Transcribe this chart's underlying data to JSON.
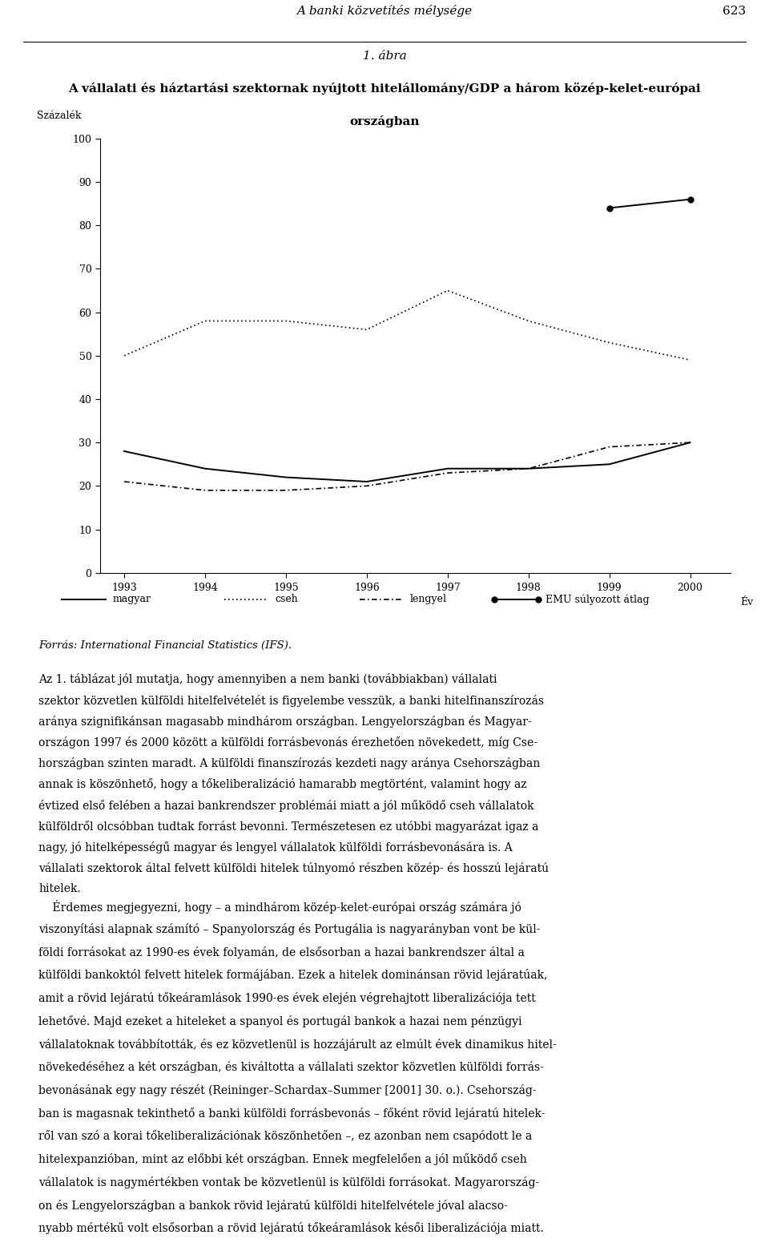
{
  "title_line1": "1. ábra",
  "title_line2": "A vállalati és háztartási szektornak nyújtott hitelállomány/GDP a három közép-kelet-európai",
  "title_line3": "országban",
  "header_title": "A banki közvetítés mélysége",
  "header_page": "623",
  "ylabel": "Százalék",
  "xlabel": "Év",
  "years": [
    1993,
    1994,
    1995,
    1996,
    1997,
    1998,
    1999,
    2000
  ],
  "magyar": [
    28,
    24,
    22,
    21,
    24,
    24,
    25,
    30
  ],
  "cseh": [
    50,
    58,
    58,
    56,
    65,
    58,
    53,
    49
  ],
  "lengyel": [
    21,
    19,
    19,
    20,
    23,
    24,
    29,
    30
  ],
  "emu_years": [
    1999,
    2000
  ],
  "emu_values": [
    84,
    86
  ],
  "ylim": [
    0,
    100
  ],
  "yticks": [
    0,
    10,
    20,
    30,
    40,
    50,
    60,
    70,
    80,
    90,
    100
  ],
  "xticks": [
    1993,
    1994,
    1995,
    1996,
    1997,
    1998,
    1999,
    2000
  ],
  "legend_labels": [
    "magyar",
    "cseh",
    "lengyel",
    "EMU súlyozott átlag"
  ],
  "source_text": "Forrás: International Financial Statistics (IFS).",
  "para1": "Az 1. táblázat jól mutatja, hogy amennyiben a nem banki (továbbiakban) vállalati szektor közvetlen külföldi hitelfelvételét is figyelembe vesszük, a banki hitelfinanszírozás aránya szignifikánsan magasabb mindhárom országban. Lengyelországban és Magyarországon 1997 és 2000 között a külföldi forrásbevonás érezhetően növekedett, míg Csehországban szinten maradt. A külföldi finanszírozás kezdeti nagy aránya Csehországban annak is köszönhető, hogy a tőkeliberalizáció hamarabb megtörtént, valamint hogy az évtized első felében a hazai bankrendszer problémái miatt a jól működő cseh vállalatok külföldről olcsóbban tudtak forrást bevonni. Természetesen ez utóbbi magyarázat igaz a nagy, jó hitelképességű magyar és lengyel vállalatok külföldi forrásbevonására is. A vállalati szektorok által felvett külföldi hitelek túlnyomó részben közép- és hosszú lejáratú hitelek.",
  "para2": "    Érdemes megjegyezni, hogy – a mindhárom közép-kelet-európai ország számára jó viszonyítási alapnak számító – Spanyolország és Portugália is nagyarányban vont be külföldi forrásokat az 1990-es évek folyamán, de elsősorban a hazai bankrendszer által a külföldi bankoktól felvett hitelek formájában. Ezek a hitelek dominánsan rövid lejáratúak, amit a rövid lejáratú tőkeáramlások 1990-es évek elején végrehajtott liberalizációja tett lehetővé. Majd ezeket a hiteleket a spanyol és portugál bankok a hazai nem pénzügyi vállalatoknak továbbították, és ez közvetlenül is hozzájárult az elmúlt évek dinamikus hitelnövekedéséhez a két országban, és kiváltotta a vállalati szektor közvetlen külföldi forrásbevonásának egy nagy részét (Reininger–Schardax–Summer [2001] 30. o.). Csehországban is magasnak tekinthető a banki külföldi forrásbevonás – főként rövid lejáratú hitelekről van szó a korai tőkeliberalizációnak köszönhetően –, ez azonban nem csapódott le a hitelexpanzióban, mint az előbbi két országban. Ennek megfelelően a jól működő cseh vállalatok is nagymértékben vontak be közvetlenül is külföldi forrásokat. Magyarországon és Lengyelországban a bankok rövid lejáratú külföldi hitelfelvétele jóval alacsonyabb mértékű volt elsősorban a rövid lejáratú tőkeáramlások késői liberalizációja miatt.",
  "background_color": "#ffffff"
}
